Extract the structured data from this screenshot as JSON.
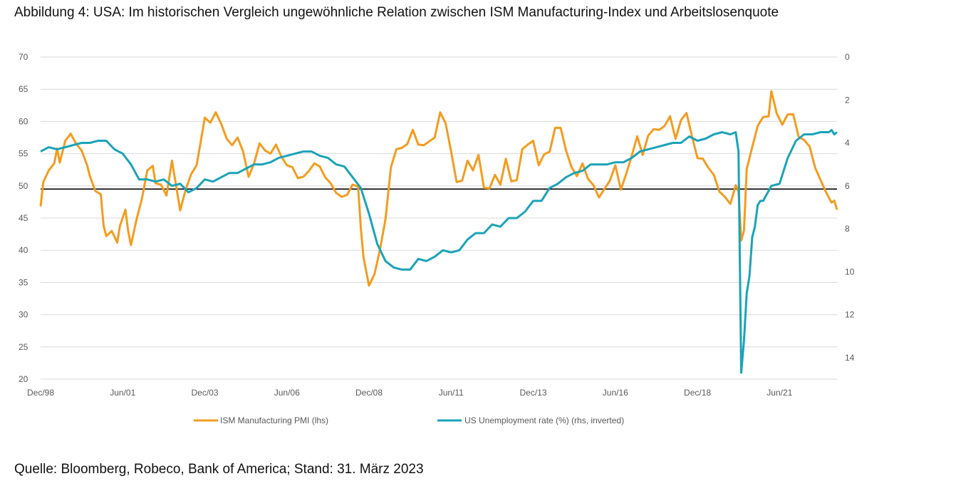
{
  "title": "Abbildung 4: USA: Im historischen Vergleich ungewöhnliche Relation zwischen ISM Manufacturing-Index und Arbeitslosenquote",
  "source": "Quelle: Bloomberg, Robeco, Bank of America; Stand: 31. März 2023",
  "colors": {
    "pmi": "#f39c1f",
    "unemployment": "#1aa3b7",
    "grid": "#d9d9d9",
    "reference": "#000000"
  },
  "chart_data": {
    "type": "line",
    "x_range": [
      "1998-12",
      "2023-03"
    ],
    "x_ticks": [
      {
        "date": "1998-12",
        "label": "Dec/98"
      },
      {
        "date": "2001-06",
        "label": "Jun/01"
      },
      {
        "date": "2003-12",
        "label": "Dec/03"
      },
      {
        "date": "2006-06",
        "label": "Jun/06"
      },
      {
        "date": "2008-12",
        "label": "Dec/08"
      },
      {
        "date": "2011-06",
        "label": "Jun/11"
      },
      {
        "date": "2013-12",
        "label": "Dec/13"
      },
      {
        "date": "2016-06",
        "label": "Jun/16"
      },
      {
        "date": "2018-12",
        "label": "Dec/18"
      },
      {
        "date": "2021-06",
        "label": "Jun/21"
      }
    ],
    "y_left": {
      "min": 20,
      "max": 70,
      "ticks": [
        "20",
        "25",
        "30",
        "35",
        "40",
        "45",
        "50",
        "55",
        "60",
        "65",
        "70"
      ]
    },
    "y_right": {
      "min": 0,
      "max": 15,
      "inverted": true,
      "ticks": [
        "0",
        "2",
        "4",
        "6",
        "8",
        "10",
        "12",
        "14"
      ]
    },
    "reference_line": {
      "axis": "left",
      "value": 49.5
    },
    "grid": true,
    "legend_position": "bottom",
    "series": [
      {
        "name": "ISM Manufacturing PMI (lhs)",
        "axis": "left",
        "points": [
          [
            "1998-12",
            46.8
          ],
          [
            "1999-01",
            50.6
          ],
          [
            "1999-03",
            52.4
          ],
          [
            "1999-05",
            53.5
          ],
          [
            "1999-06",
            55.8
          ],
          [
            "1999-07",
            53.6
          ],
          [
            "1999-09",
            57.0
          ],
          [
            "1999-11",
            58.1
          ],
          [
            "2000-01",
            56.5
          ],
          [
            "2000-03",
            55.5
          ],
          [
            "2000-05",
            53.2
          ],
          [
            "2000-06",
            51.5
          ],
          [
            "2000-08",
            49.2
          ],
          [
            "2000-10",
            48.7
          ],
          [
            "2000-11",
            43.8
          ],
          [
            "2000-12",
            42.2
          ],
          [
            "2001-02",
            43.0
          ],
          [
            "2001-04",
            41.2
          ],
          [
            "2001-05",
            43.8
          ],
          [
            "2001-07",
            46.3
          ],
          [
            "2001-08",
            43.0
          ],
          [
            "2001-09",
            40.8
          ],
          [
            "2001-11",
            44.7
          ],
          [
            "2002-01",
            48.0
          ],
          [
            "2002-03",
            52.4
          ],
          [
            "2002-05",
            53.1
          ],
          [
            "2002-06",
            50.4
          ],
          [
            "2002-08",
            50.2
          ],
          [
            "2002-10",
            48.5
          ],
          [
            "2002-12",
            53.9
          ],
          [
            "2003-01",
            51.3
          ],
          [
            "2003-03",
            46.2
          ],
          [
            "2003-05",
            49.4
          ],
          [
            "2003-07",
            51.8
          ],
          [
            "2003-09",
            53.2
          ],
          [
            "2003-11",
            58.1
          ],
          [
            "2003-12",
            60.6
          ],
          [
            "2004-02",
            59.8
          ],
          [
            "2004-04",
            61.4
          ],
          [
            "2004-06",
            59.6
          ],
          [
            "2004-08",
            57.3
          ],
          [
            "2004-10",
            56.3
          ],
          [
            "2004-12",
            57.5
          ],
          [
            "2005-02",
            55.3
          ],
          [
            "2005-04",
            51.4
          ],
          [
            "2005-06",
            53.5
          ],
          [
            "2005-08",
            56.6
          ],
          [
            "2005-10",
            55.5
          ],
          [
            "2005-12",
            55.0
          ],
          [
            "2006-02",
            56.4
          ],
          [
            "2006-04",
            54.5
          ],
          [
            "2006-06",
            53.2
          ],
          [
            "2006-08",
            52.9
          ],
          [
            "2006-10",
            51.2
          ],
          [
            "2006-12",
            51.4
          ],
          [
            "2007-02",
            52.3
          ],
          [
            "2007-04",
            53.5
          ],
          [
            "2007-06",
            53.0
          ],
          [
            "2007-08",
            51.3
          ],
          [
            "2007-10",
            50.4
          ],
          [
            "2007-12",
            48.9
          ],
          [
            "2008-02",
            48.3
          ],
          [
            "2008-04",
            48.6
          ],
          [
            "2008-06",
            50.2
          ],
          [
            "2008-08",
            49.9
          ],
          [
            "2008-09",
            43.5
          ],
          [
            "2008-10",
            38.9
          ],
          [
            "2008-12",
            34.5
          ],
          [
            "2009-02",
            36.3
          ],
          [
            "2009-04",
            40.1
          ],
          [
            "2009-06",
            44.8
          ],
          [
            "2009-08",
            52.9
          ],
          [
            "2009-10",
            55.7
          ],
          [
            "2009-12",
            55.9
          ],
          [
            "2010-02",
            56.5
          ],
          [
            "2010-04",
            58.7
          ],
          [
            "2010-06",
            56.4
          ],
          [
            "2010-08",
            56.3
          ],
          [
            "2010-10",
            56.9
          ],
          [
            "2010-12",
            57.5
          ],
          [
            "2011-02",
            61.4
          ],
          [
            "2011-04",
            59.7
          ],
          [
            "2011-06",
            55.3
          ],
          [
            "2011-08",
            50.6
          ],
          [
            "2011-10",
            50.8
          ],
          [
            "2011-12",
            53.9
          ],
          [
            "2012-02",
            52.4
          ],
          [
            "2012-04",
            54.8
          ],
          [
            "2012-06",
            49.7
          ],
          [
            "2012-08",
            49.6
          ],
          [
            "2012-10",
            51.7
          ],
          [
            "2012-12",
            50.2
          ],
          [
            "2013-02",
            54.2
          ],
          [
            "2013-04",
            50.7
          ],
          [
            "2013-06",
            50.9
          ],
          [
            "2013-08",
            55.7
          ],
          [
            "2013-10",
            56.4
          ],
          [
            "2013-12",
            57.0
          ],
          [
            "2014-02",
            53.2
          ],
          [
            "2014-04",
            54.9
          ],
          [
            "2014-06",
            55.3
          ],
          [
            "2014-08",
            59.0
          ],
          [
            "2014-10",
            59.0
          ],
          [
            "2014-12",
            55.5
          ],
          [
            "2015-02",
            52.9
          ],
          [
            "2015-04",
            51.5
          ],
          [
            "2015-06",
            53.5
          ],
          [
            "2015-08",
            51.1
          ],
          [
            "2015-10",
            50.1
          ],
          [
            "2015-12",
            48.2
          ],
          [
            "2016-02",
            49.5
          ],
          [
            "2016-04",
            50.8
          ],
          [
            "2016-06",
            53.2
          ],
          [
            "2016-08",
            49.4
          ],
          [
            "2016-10",
            51.9
          ],
          [
            "2016-12",
            54.7
          ],
          [
            "2017-02",
            57.7
          ],
          [
            "2017-04",
            54.8
          ],
          [
            "2017-06",
            57.8
          ],
          [
            "2017-08",
            58.8
          ],
          [
            "2017-10",
            58.7
          ],
          [
            "2017-12",
            59.3
          ],
          [
            "2018-02",
            60.8
          ],
          [
            "2018-04",
            57.3
          ],
          [
            "2018-06",
            60.2
          ],
          [
            "2018-08",
            61.3
          ],
          [
            "2018-10",
            57.7
          ],
          [
            "2018-12",
            54.3
          ],
          [
            "2019-02",
            54.2
          ],
          [
            "2019-04",
            52.8
          ],
          [
            "2019-06",
            51.7
          ],
          [
            "2019-08",
            49.1
          ],
          [
            "2019-10",
            48.3
          ],
          [
            "2019-12",
            47.2
          ],
          [
            "2020-02",
            50.1
          ],
          [
            "2020-03",
            49.1
          ],
          [
            "2020-04",
            41.5
          ],
          [
            "2020-05",
            43.1
          ],
          [
            "2020-06",
            52.6
          ],
          [
            "2020-08",
            56.0
          ],
          [
            "2020-10",
            59.3
          ],
          [
            "2020-12",
            60.7
          ],
          [
            "2021-02",
            60.8
          ],
          [
            "2021-03",
            64.7
          ],
          [
            "2021-05",
            61.2
          ],
          [
            "2021-07",
            59.5
          ],
          [
            "2021-09",
            61.1
          ],
          [
            "2021-11",
            61.1
          ],
          [
            "2022-01",
            57.6
          ],
          [
            "2022-03",
            57.1
          ],
          [
            "2022-05",
            56.1
          ],
          [
            "2022-07",
            52.8
          ],
          [
            "2022-09",
            50.9
          ],
          [
            "2022-11",
            49.0
          ],
          [
            "2023-01",
            47.4
          ],
          [
            "2023-02",
            47.7
          ],
          [
            "2023-03",
            46.3
          ]
        ]
      },
      {
        "name": "US Unemployment rate (%) (rhs, inverted)",
        "axis": "right",
        "points": [
          [
            "1998-12",
            4.4
          ],
          [
            "1999-03",
            4.2
          ],
          [
            "1999-06",
            4.3
          ],
          [
            "1999-09",
            4.2
          ],
          [
            "1999-12",
            4.1
          ],
          [
            "2000-03",
            4.0
          ],
          [
            "2000-06",
            4.0
          ],
          [
            "2000-09",
            3.9
          ],
          [
            "2000-12",
            3.9
          ],
          [
            "2001-03",
            4.3
          ],
          [
            "2001-06",
            4.5
          ],
          [
            "2001-09",
            5.0
          ],
          [
            "2001-12",
            5.7
          ],
          [
            "2002-03",
            5.7
          ],
          [
            "2002-06",
            5.8
          ],
          [
            "2002-09",
            5.7
          ],
          [
            "2002-12",
            6.0
          ],
          [
            "2003-03",
            5.9
          ],
          [
            "2003-06",
            6.3
          ],
          [
            "2003-09",
            6.1
          ],
          [
            "2003-12",
            5.7
          ],
          [
            "2004-03",
            5.8
          ],
          [
            "2004-06",
            5.6
          ],
          [
            "2004-09",
            5.4
          ],
          [
            "2004-12",
            5.4
          ],
          [
            "2005-03",
            5.2
          ],
          [
            "2005-06",
            5.0
          ],
          [
            "2005-09",
            5.0
          ],
          [
            "2005-12",
            4.9
          ],
          [
            "2006-03",
            4.7
          ],
          [
            "2006-06",
            4.6
          ],
          [
            "2006-09",
            4.5
          ],
          [
            "2006-12",
            4.4
          ],
          [
            "2007-03",
            4.4
          ],
          [
            "2007-06",
            4.6
          ],
          [
            "2007-09",
            4.7
          ],
          [
            "2007-12",
            5.0
          ],
          [
            "2008-03",
            5.1
          ],
          [
            "2008-06",
            5.6
          ],
          [
            "2008-09",
            6.1
          ],
          [
            "2008-12",
            7.3
          ],
          [
            "2009-03",
            8.7
          ],
          [
            "2009-06",
            9.5
          ],
          [
            "2009-09",
            9.8
          ],
          [
            "2009-12",
            9.9
          ],
          [
            "2010-03",
            9.9
          ],
          [
            "2010-06",
            9.4
          ],
          [
            "2010-09",
            9.5
          ],
          [
            "2010-12",
            9.3
          ],
          [
            "2011-03",
            9.0
          ],
          [
            "2011-06",
            9.1
          ],
          [
            "2011-09",
            9.0
          ],
          [
            "2011-12",
            8.5
          ],
          [
            "2012-03",
            8.2
          ],
          [
            "2012-06",
            8.2
          ],
          [
            "2012-09",
            7.8
          ],
          [
            "2012-12",
            7.9
          ],
          [
            "2013-03",
            7.5
          ],
          [
            "2013-06",
            7.5
          ],
          [
            "2013-09",
            7.2
          ],
          [
            "2013-12",
            6.7
          ],
          [
            "2014-03",
            6.7
          ],
          [
            "2014-06",
            6.1
          ],
          [
            "2014-09",
            5.9
          ],
          [
            "2014-12",
            5.6
          ],
          [
            "2015-03",
            5.4
          ],
          [
            "2015-06",
            5.3
          ],
          [
            "2015-09",
            5.0
          ],
          [
            "2015-12",
            5.0
          ],
          [
            "2016-03",
            5.0
          ],
          [
            "2016-06",
            4.9
          ],
          [
            "2016-09",
            4.9
          ],
          [
            "2016-12",
            4.7
          ],
          [
            "2017-03",
            4.4
          ],
          [
            "2017-06",
            4.3
          ],
          [
            "2017-09",
            4.2
          ],
          [
            "2017-12",
            4.1
          ],
          [
            "2018-03",
            4.0
          ],
          [
            "2018-06",
            4.0
          ],
          [
            "2018-09",
            3.7
          ],
          [
            "2018-12",
            3.9
          ],
          [
            "2019-03",
            3.8
          ],
          [
            "2019-06",
            3.6
          ],
          [
            "2019-09",
            3.5
          ],
          [
            "2019-12",
            3.6
          ],
          [
            "2020-02",
            3.5
          ],
          [
            "2020-03",
            4.4
          ],
          [
            "2020-04",
            14.7
          ],
          [
            "2020-05",
            13.2
          ],
          [
            "2020-06",
            11.0
          ],
          [
            "2020-07",
            10.2
          ],
          [
            "2020-08",
            8.4
          ],
          [
            "2020-09",
            7.9
          ],
          [
            "2020-10",
            6.9
          ],
          [
            "2020-11",
            6.7
          ],
          [
            "2020-12",
            6.7
          ],
          [
            "2021-03",
            6.0
          ],
          [
            "2021-06",
            5.9
          ],
          [
            "2021-09",
            4.7
          ],
          [
            "2021-12",
            3.9
          ],
          [
            "2022-03",
            3.6
          ],
          [
            "2022-06",
            3.6
          ],
          [
            "2022-09",
            3.5
          ],
          [
            "2022-12",
            3.5
          ],
          [
            "2023-01",
            3.4
          ],
          [
            "2023-02",
            3.6
          ],
          [
            "2023-03",
            3.5
          ]
        ]
      }
    ]
  }
}
